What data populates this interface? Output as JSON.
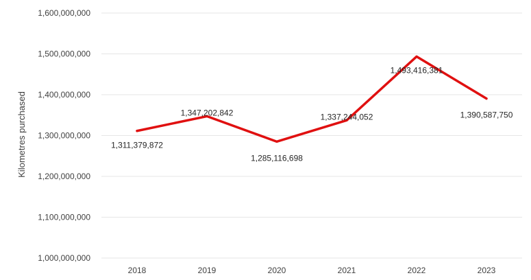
{
  "chart_data": {
    "type": "line",
    "categories": [
      "2018",
      "2019",
      "2020",
      "2021",
      "2022",
      "2023"
    ],
    "series": [
      {
        "values": [
          1311379872,
          1347202842,
          1285116698,
          1337244052,
          1493416381,
          1390587750
        ],
        "labels": [
          "1,311,379,872",
          "1,347,202,842",
          "1,285,116,698",
          "1,337,244,052",
          "1,493,416,381",
          "1,390,587,750"
        ]
      }
    ],
    "ylabel": "Kilometres purchased",
    "ylim": [
      1000000000,
      1600000000
    ],
    "yticks": [
      1000000000,
      1100000000,
      1200000000,
      1300000000,
      1400000000,
      1500000000,
      1600000000
    ],
    "ytick_labels": [
      "1,000,000,000",
      "1,100,000,000",
      "1,200,000,000",
      "1,300,000,000",
      "1,400,000,000",
      "1,500,000,000",
      "1,600,000,000"
    ],
    "grid": true,
    "legend": "none",
    "line_color": "#e01010"
  }
}
